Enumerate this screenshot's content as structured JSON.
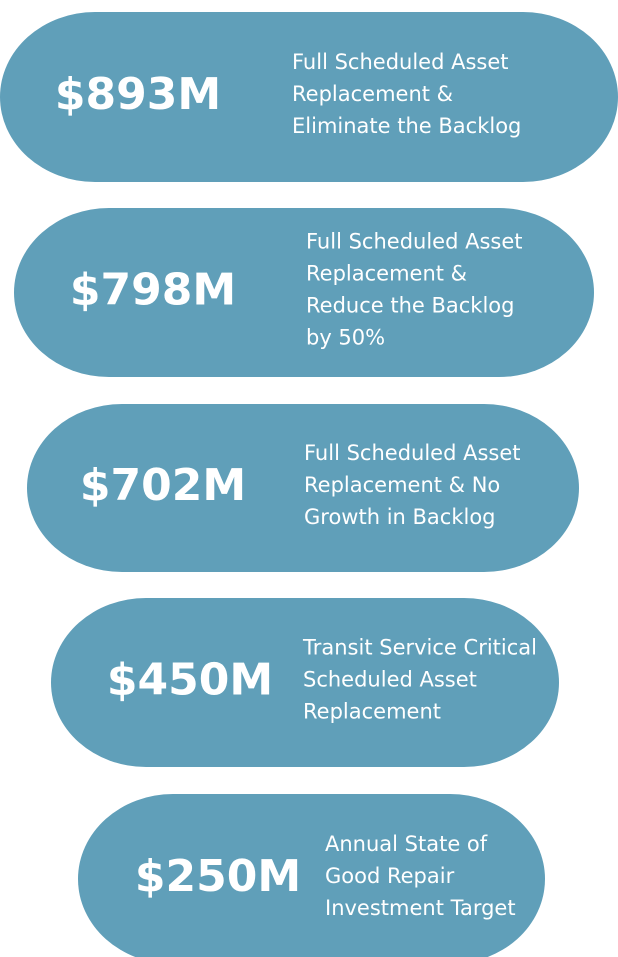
{
  "items": [
    {
      "amount": "$893M",
      "description": [
        "Full Scheduled Asset",
        "Replacement &",
        "Eliminate the Backlog"
      ]
    },
    {
      "amount": "$798M",
      "description": [
        "Full Scheduled Asset",
        "Replacement &",
        "Reduce the Backlog",
        "by 50%"
      ]
    },
    {
      "amount": "$702M",
      "description": [
        "Full Scheduled Asset",
        "Replacement & No",
        "Growth in Backlog"
      ]
    },
    {
      "amount": "$450M",
      "description": [
        "Transit Service Critical",
        "Scheduled Asset",
        "Replacement"
      ]
    },
    {
      "amount": "$250M",
      "description": [
        "Annual State of",
        "Good Repair",
        "Investment Target"
      ]
    }
  ]
}
